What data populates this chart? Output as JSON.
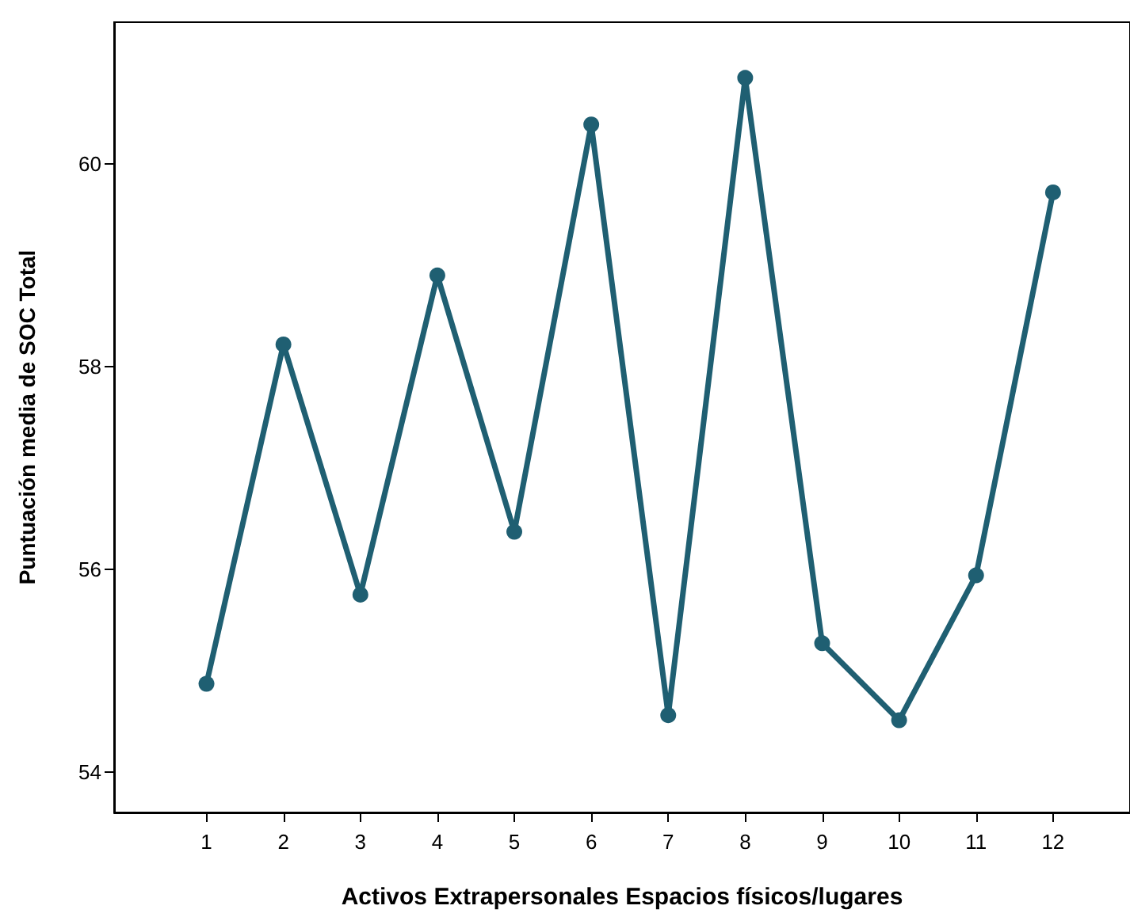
{
  "chart_data": {
    "type": "line",
    "xlabel": "Activos Extrapersonales Espacios físicos/lugares",
    "ylabel": "Puntuación media de SOC Total",
    "x": [
      1,
      2,
      3,
      4,
      5,
      6,
      7,
      8,
      9,
      10,
      11,
      12
    ],
    "series": [
      {
        "color": "#1f5f72",
        "values": [
          54.87,
          58.22,
          55.75,
          58.9,
          56.37,
          60.39,
          54.56,
          60.85,
          55.27,
          54.51,
          55.94,
          59.72
        ]
      }
    ],
    "xlim": [
      -0.2,
      13
    ],
    "xticks": [
      1,
      2,
      3,
      4,
      5,
      6,
      7,
      8,
      9,
      10,
      11,
      12
    ],
    "ylim": [
      53.6,
      61.4
    ],
    "yticks": [
      54,
      56,
      58,
      60
    ],
    "grid": false,
    "marker": "circle",
    "line_style": "solid"
  }
}
